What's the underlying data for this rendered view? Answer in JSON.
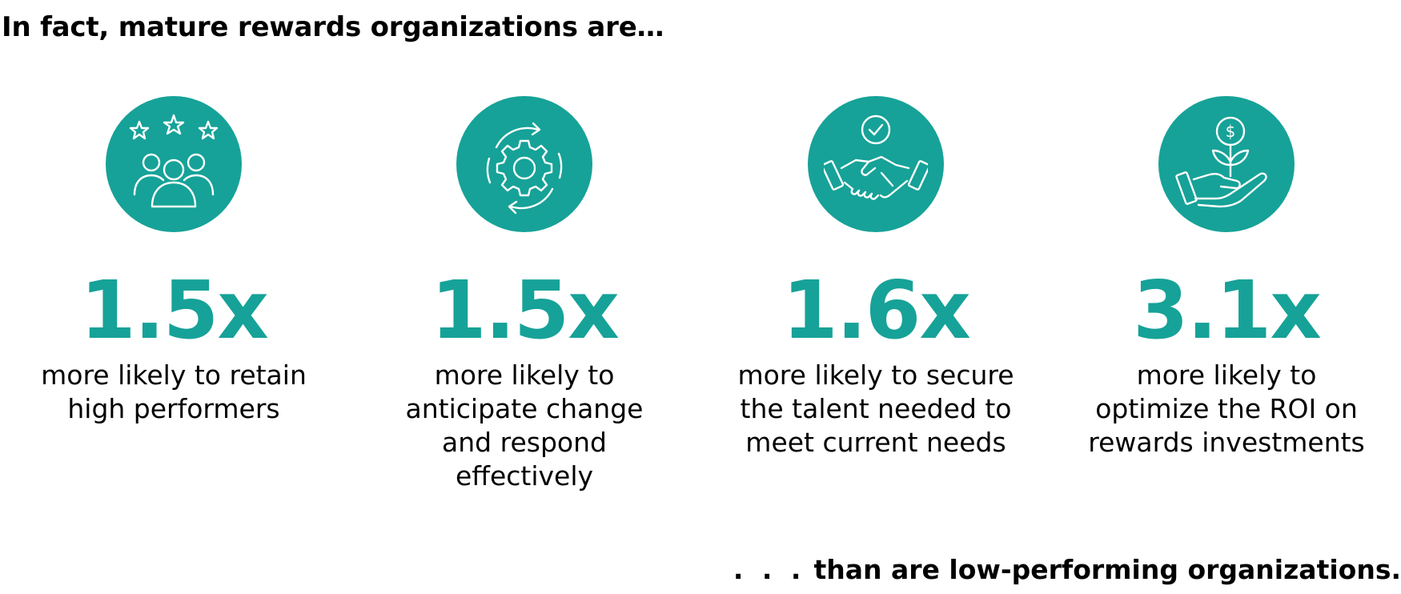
{
  "headline": "In fact, mature rewards organizations are…",
  "accent_color": "#16a298",
  "stats": [
    {
      "icon": "people-stars-icon",
      "value": "1.5x",
      "description": "more likely to retain high performers"
    },
    {
      "icon": "gear-cycle-icon",
      "value": "1.5x",
      "description": "more likely to anticipate change and respond effectively"
    },
    {
      "icon": "handshake-check-icon",
      "value": "1.6x",
      "description": "more likely to secure the talent needed to meet current needs"
    },
    {
      "icon": "hand-plant-dollar-icon",
      "value": "3.1x",
      "description": "more likely to optimize the ROI on rewards investments"
    }
  ],
  "footer": {
    "dots": ". . .",
    "text": "than are low-performing organizations."
  }
}
